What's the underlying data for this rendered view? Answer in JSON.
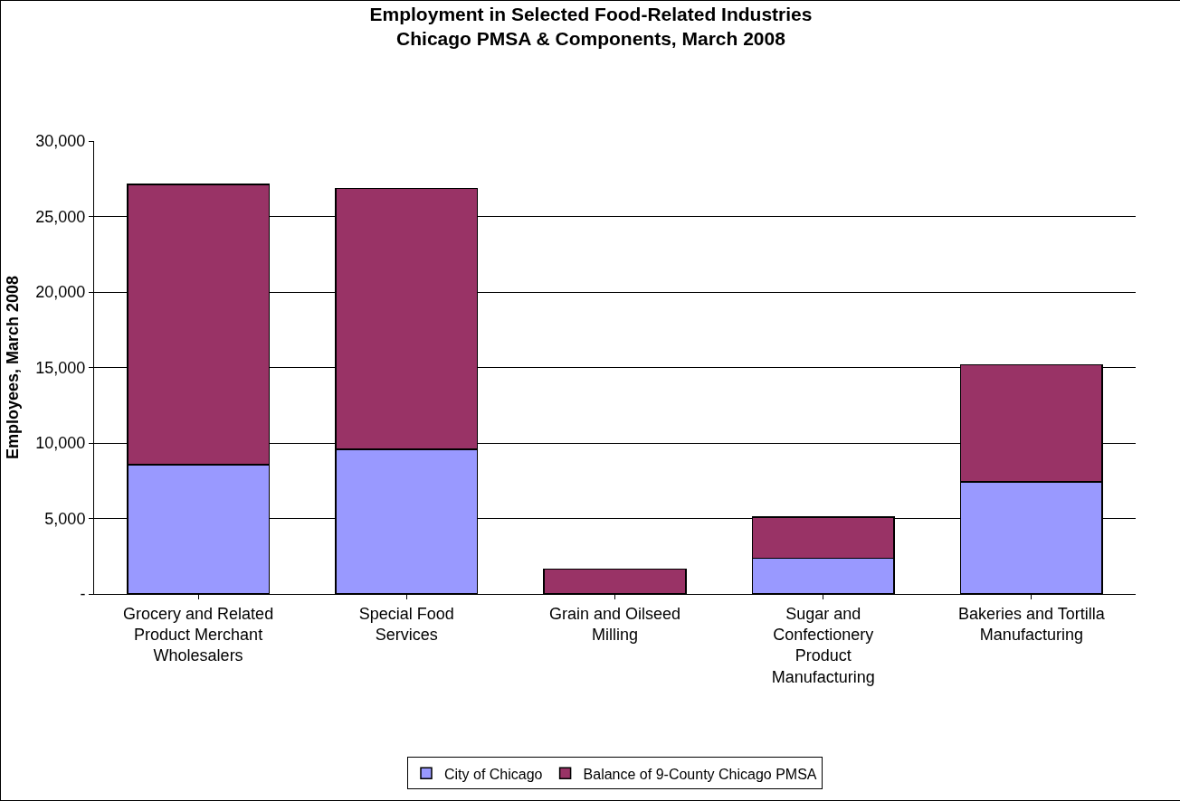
{
  "chart_data": {
    "type": "bar",
    "title": "Employment in Selected Food-Related Industries\nChicago PMSA & Components, March 2008",
    "ylabel": "Employees, March 2008",
    "categories": [
      "Grocery and Related\nProduct Merchant\nWholesalers",
      "Special Food\nServices",
      "Grain and Oilseed\nMilling",
      "Sugar and\nConfectionery\nProduct\nManufacturing",
      "Bakeries and Tortilla\nManufacturing"
    ],
    "stacked": true,
    "series": [
      {
        "name": "City of Chicago",
        "color": "#9999ff",
        "values": [
          8570,
          9590,
          0,
          2370,
          7440
        ]
      },
      {
        "name": "Balance of 9-County Chicago PMSA",
        "color": "#993366",
        "values": [
          18560,
          17260,
          1640,
          2710,
          7730
        ]
      }
    ],
    "ylim": [
      0,
      30000
    ],
    "yticks": [
      {
        "value": 0,
        "label": "-"
      },
      {
        "value": 5000,
        "label": "5,000"
      },
      {
        "value": 10000,
        "label": "10,000"
      },
      {
        "value": 15000,
        "label": "15,000"
      },
      {
        "value": 20000,
        "label": "20,000"
      },
      {
        "value": 25000,
        "label": "25,000"
      },
      {
        "value": 30000,
        "label": "30,000"
      }
    ],
    "grid": "y",
    "legend": "bottom"
  }
}
